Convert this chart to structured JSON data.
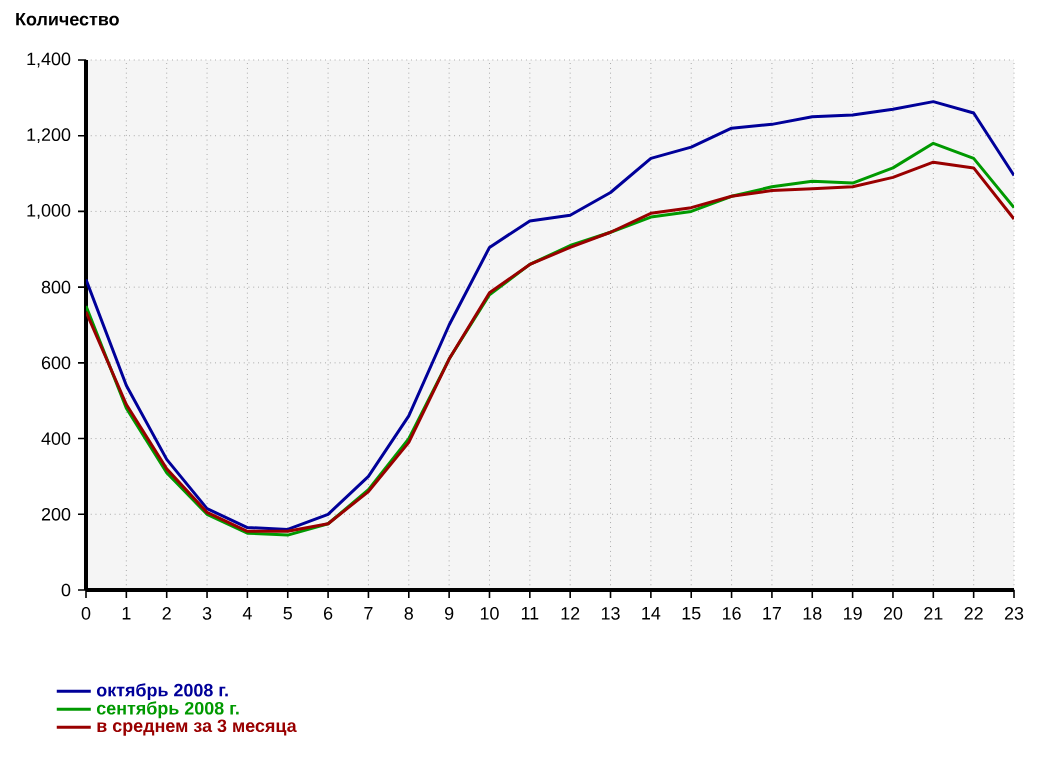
{
  "chart_data": {
    "type": "line",
    "ylabel": "Количество",
    "x": [
      0,
      1,
      2,
      3,
      4,
      5,
      6,
      7,
      8,
      9,
      10,
      11,
      12,
      13,
      14,
      15,
      16,
      17,
      18,
      19,
      20,
      21,
      22,
      23
    ],
    "series": [
      {
        "name": "октябрь 2008 г.",
        "color": "#000099",
        "values": [
          820,
          540,
          345,
          215,
          165,
          160,
          200,
          300,
          460,
          700,
          905,
          975,
          990,
          1050,
          1140,
          1170,
          1220,
          1230,
          1250,
          1255,
          1270,
          1290,
          1260,
          1095
        ]
      },
      {
        "name": "сентябрь 2008 г.",
        "color": "#009900",
        "values": [
          750,
          480,
          310,
          200,
          150,
          145,
          175,
          265,
          400,
          610,
          780,
          860,
          910,
          945,
          985,
          1000,
          1040,
          1065,
          1080,
          1075,
          1115,
          1180,
          1140,
          1010
        ]
      },
      {
        "name": "в среднем за 3 месяца",
        "color": "#990000",
        "values": [
          735,
          490,
          320,
          205,
          155,
          155,
          175,
          260,
          390,
          610,
          785,
          860,
          905,
          945,
          995,
          1010,
          1040,
          1055,
          1060,
          1065,
          1090,
          1130,
          1115,
          980
        ]
      }
    ],
    "xlim": [
      0,
      23
    ],
    "xticks": [
      0,
      1,
      2,
      3,
      4,
      5,
      6,
      7,
      8,
      9,
      10,
      11,
      12,
      13,
      14,
      15,
      16,
      17,
      18,
      19,
      20,
      21,
      22,
      23
    ],
    "ylim": [
      0,
      1400
    ],
    "yticks": [
      0,
      200,
      400,
      600,
      800,
      {
        "value": 1000,
        "label": "1,000"
      },
      {
        "value": 1200,
        "label": "1,200"
      },
      {
        "value": 1400,
        "label": "1,400"
      }
    ],
    "grid": true,
    "legend": "bottom left",
    "marker": "none",
    "line_style": "solid"
  }
}
